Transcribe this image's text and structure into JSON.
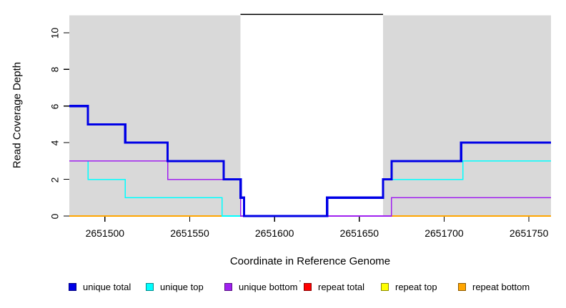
{
  "figure": {
    "xlabel": "Coordinate in Reference Genome",
    "ylabel": "Read Coverage Depth",
    "stray_mark": "'"
  },
  "chart_data": {
    "type": "line",
    "step": true,
    "title": "",
    "xlabel": "Coordinate in Reference Genome",
    "ylabel": "Read Coverage Depth",
    "xlim": [
      2651479,
      2651763
    ],
    "ylim": [
      0,
      11.2
    ],
    "x_ticks": [
      2651500,
      2651550,
      2651600,
      2651650,
      2651700,
      2651750
    ],
    "y_ticks": [
      0,
      2,
      4,
      6,
      8,
      10
    ],
    "grid": false,
    "plot_bg": "#ffffff",
    "background_regions": [
      {
        "name": "shaded-region-left",
        "x0": 2651479,
        "x1": 2651580,
        "y0": 0,
        "y1": 10.95,
        "color": "#D9D9D9"
      },
      {
        "name": "shaded-region-right",
        "x0": 2651664,
        "x1": 2651763,
        "y0": 0,
        "y1": 10.95,
        "color": "#D9D9D9"
      }
    ],
    "annotation_line": {
      "y": 11,
      "x0": 2651580,
      "x1": 2651664,
      "color": "#000000",
      "width": 1.6
    },
    "series": [
      {
        "name": "repeat total",
        "color": "#FF0000",
        "width": 1.5,
        "points": [
          [
            2651479,
            0
          ],
          [
            2651763,
            0
          ]
        ]
      },
      {
        "name": "repeat top",
        "color": "#FFFF00",
        "width": 1.5,
        "points": [
          [
            2651479,
            0
          ],
          [
            2651763,
            0
          ]
        ]
      },
      {
        "name": "repeat bottom",
        "color": "#FFA500",
        "width": 2,
        "points": [
          [
            2651479,
            0
          ],
          [
            2651763,
            0
          ]
        ]
      },
      {
        "name": "unique top",
        "color": "#00FFFF",
        "width": 1.6,
        "points": [
          [
            2651479,
            3
          ],
          [
            2651490,
            3
          ],
          [
            2651490,
            2
          ],
          [
            2651512,
            2
          ],
          [
            2651512,
            1
          ],
          [
            2651569,
            1
          ],
          [
            2651569,
            0
          ],
          [
            2651631,
            0
          ],
          [
            2651631,
            1
          ],
          [
            2651664,
            1
          ],
          [
            2651664,
            2
          ],
          [
            2651711,
            2
          ],
          [
            2651711,
            3
          ],
          [
            2651763,
            3
          ]
        ]
      },
      {
        "name": "unique bottom",
        "color": "#A020F0",
        "width": 1.6,
        "points": [
          [
            2651479,
            3
          ],
          [
            2651537,
            3
          ],
          [
            2651537,
            2
          ],
          [
            2651580,
            2
          ],
          [
            2651580,
            0
          ],
          [
            2651669,
            0
          ],
          [
            2651669,
            1
          ],
          [
            2651763,
            1
          ]
        ]
      },
      {
        "name": "unique total",
        "color": "#0000E6",
        "width": 3.2,
        "points": [
          [
            2651479,
            6
          ],
          [
            2651490,
            6
          ],
          [
            2651490,
            5
          ],
          [
            2651512,
            5
          ],
          [
            2651512,
            4
          ],
          [
            2651537,
            4
          ],
          [
            2651537,
            3
          ],
          [
            2651570,
            3
          ],
          [
            2651570,
            2
          ],
          [
            2651580,
            2
          ],
          [
            2651580,
            1
          ],
          [
            2651582,
            1
          ],
          [
            2651582,
            0
          ],
          [
            2651631,
            0
          ],
          [
            2651631,
            1
          ],
          [
            2651664,
            1
          ],
          [
            2651664,
            2
          ],
          [
            2651669,
            2
          ],
          [
            2651669,
            3
          ],
          [
            2651710,
            3
          ],
          [
            2651710,
            4
          ],
          [
            2651763,
            4
          ]
        ]
      }
    ],
    "legend": {
      "position": "bottom",
      "entries": [
        {
          "label": "unique total",
          "color": "#0000E6"
        },
        {
          "label": "unique top",
          "color": "#00FFFF"
        },
        {
          "label": "unique bottom",
          "color": "#A020F0"
        },
        {
          "label": "repeat total",
          "color": "#FF0000"
        },
        {
          "label": "repeat top",
          "color": "#FFFF00"
        },
        {
          "label": "repeat bottom",
          "color": "#FFA500"
        }
      ]
    }
  }
}
